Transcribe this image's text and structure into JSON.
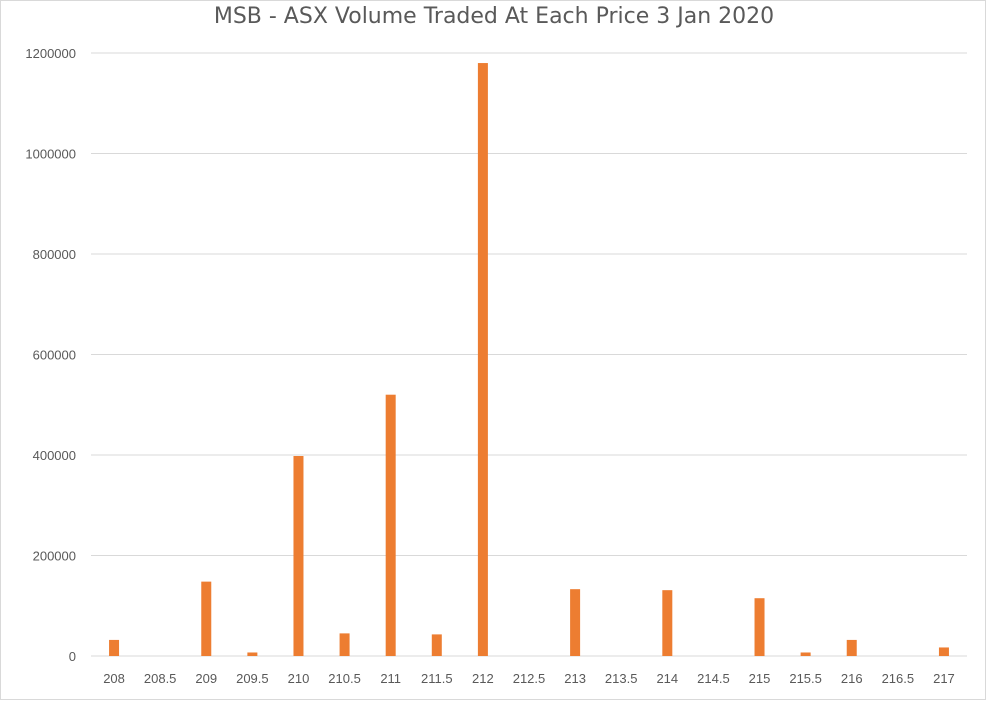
{
  "chart_data": {
    "type": "bar",
    "title": "MSB - ASX Volume Traded At Each Price 3 Jan 2020",
    "xlabel": "",
    "ylabel": "",
    "categories": [
      "208",
      "208.5",
      "209",
      "209.5",
      "210",
      "210.5",
      "211",
      "211.5",
      "212",
      "212.5",
      "213",
      "213.5",
      "214",
      "214.5",
      "215",
      "215.5",
      "216",
      "216.5",
      "217"
    ],
    "values": [
      32000,
      0,
      148000,
      7000,
      398000,
      45000,
      520000,
      43000,
      1180000,
      0,
      133000,
      0,
      131000,
      0,
      115000,
      7000,
      32000,
      0,
      17000
    ],
    "ylim": [
      0,
      1200000
    ],
    "yticks": [
      0,
      200000,
      400000,
      600000,
      800000,
      1000000,
      1200000
    ],
    "grid": true,
    "legend": "none",
    "bar_color": "#ED7D31"
  }
}
